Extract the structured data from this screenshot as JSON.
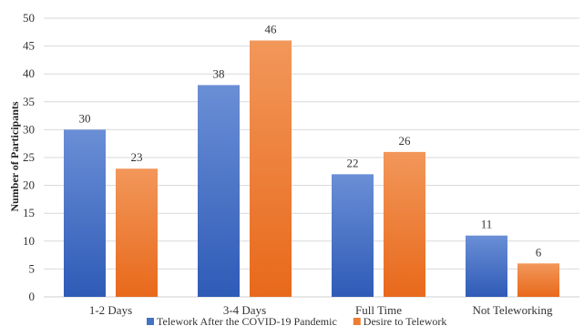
{
  "chart_data": {
    "type": "bar",
    "title": "",
    "xlabel": "",
    "ylabel": "Number of Participants",
    "ylim": [
      0,
      50
    ],
    "ytick_step": 5,
    "yticks": [
      "0",
      "5",
      "10",
      "15",
      "20",
      "25",
      "30",
      "35",
      "40",
      "45",
      "50"
    ],
    "grid": true,
    "legend_position": "bottom",
    "categories": [
      "1-2 Days",
      "3-4 Days",
      "Full Time",
      "Not Teleworking"
    ],
    "series": [
      {
        "name": "Telework After the COVID-19 Pandemic",
        "values": [
          30,
          38,
          22,
          11
        ],
        "color": "#4472C4",
        "gradient": [
          "#6A8FD6",
          "#2F5BB7"
        ]
      },
      {
        "name": "Desire to Telework",
        "values": [
          23,
          46,
          26,
          6
        ],
        "color": "#ED7D31",
        "gradient": [
          "#F2975A",
          "#E8691B"
        ]
      }
    ]
  }
}
